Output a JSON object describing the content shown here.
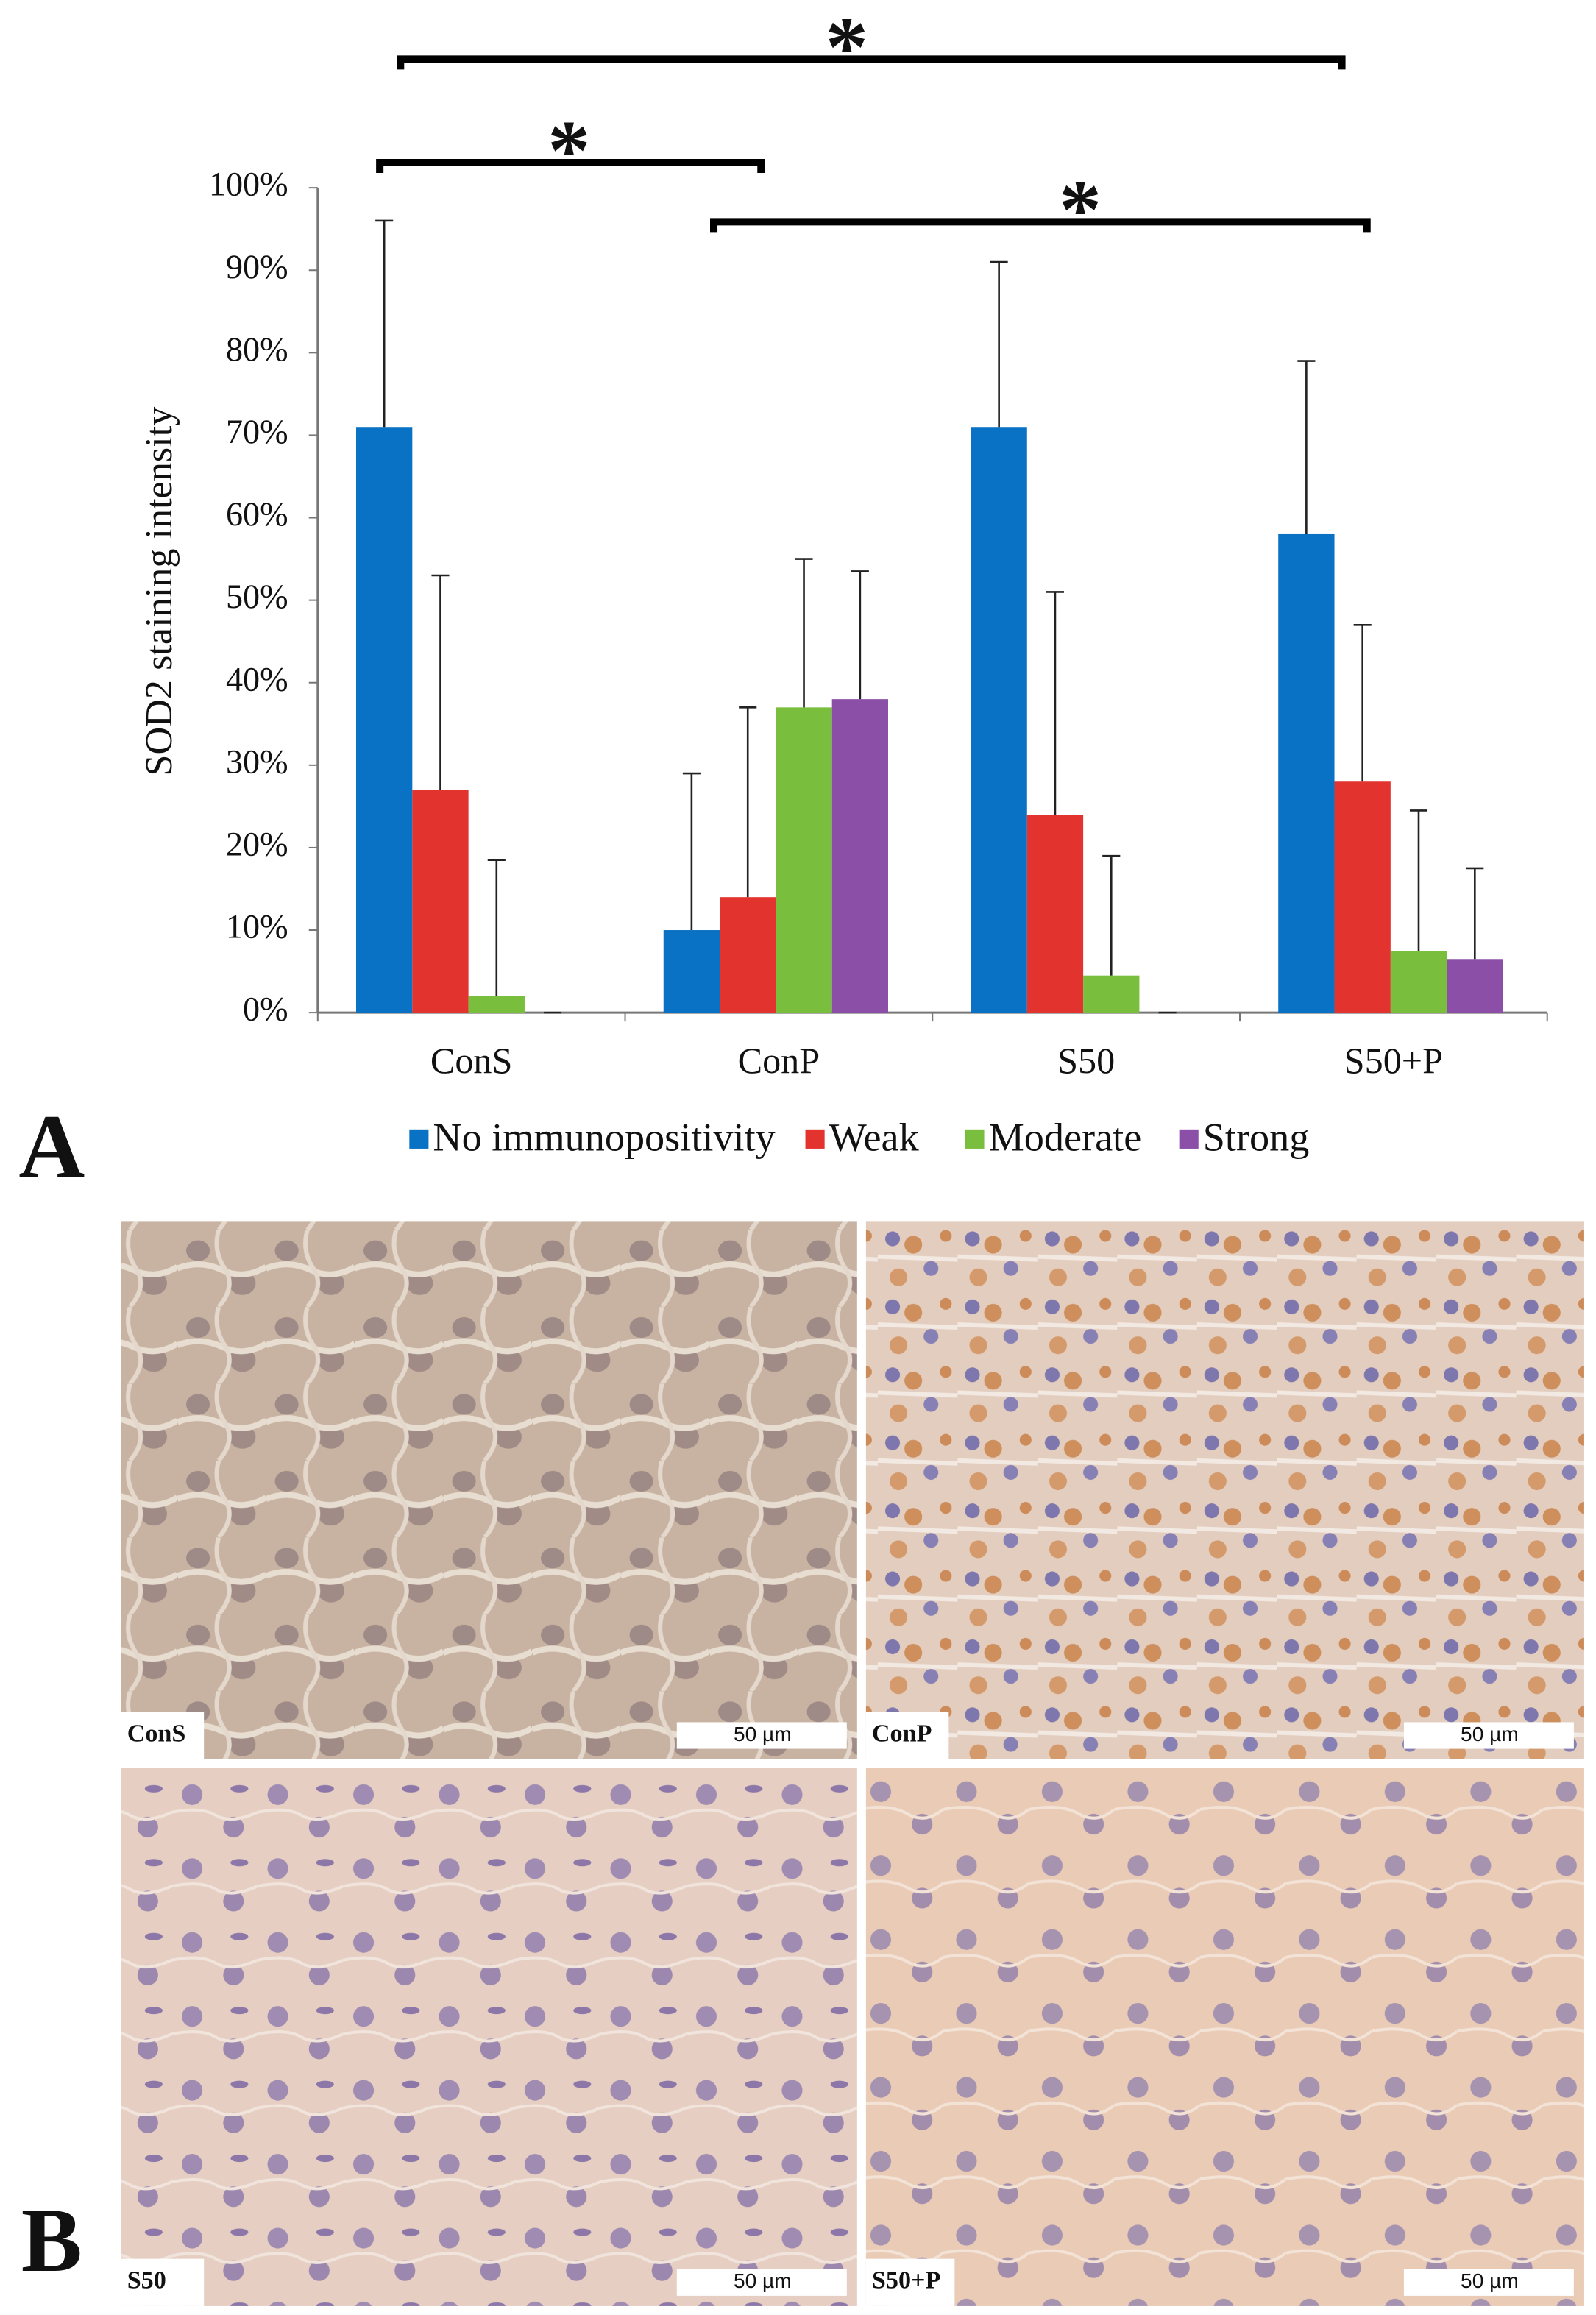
{
  "chart_data": {
    "type": "bar",
    "y_label": "SOD2 staining intensity",
    "categories": [
      "ConS",
      "ConP",
      "S50",
      "S50+P"
    ],
    "series": [
      {
        "name": "No immunopositivity",
        "color": "#0a72c4",
        "values": [
          71,
          10,
          71,
          58
        ],
        "errors": [
          25,
          19,
          20,
          21
        ]
      },
      {
        "name": "Weak",
        "color": "#e2332f",
        "values": [
          27,
          14,
          24,
          28
        ],
        "errors": [
          26,
          23,
          27,
          19
        ]
      },
      {
        "name": "Moderate",
        "color": "#79be3d",
        "values": [
          2,
          37,
          4.5,
          7.5
        ],
        "errors": [
          16.5,
          18,
          14.5,
          17
        ]
      },
      {
        "name": "Strong",
        "color": "#8b4fa8",
        "values": [
          0,
          38,
          0,
          6.5
        ],
        "errors": [
          0,
          15.5,
          0,
          11
        ]
      }
    ],
    "ylim": [
      0,
      100
    ],
    "yticks": [
      {
        "value": 0,
        "label": "0%"
      },
      {
        "value": 10,
        "label": "10%"
      },
      {
        "value": 20,
        "label": "20%"
      },
      {
        "value": 30,
        "label": "30%"
      },
      {
        "value": 40,
        "label": "40%"
      },
      {
        "value": 50,
        "label": "50%"
      },
      {
        "value": 60,
        "label": "60%"
      },
      {
        "value": 70,
        "label": "70%"
      },
      {
        "value": 80,
        "label": "80%"
      },
      {
        "value": 90,
        "label": "90%"
      },
      {
        "value": 100,
        "label": "100%"
      }
    ],
    "grid": false,
    "legend": "bottom",
    "annotations": [
      "*",
      "*",
      "*"
    ]
  },
  "panel_labels": [
    "A",
    "B"
  ],
  "micrographs": [
    {
      "label": "ConS",
      "scale_bar": "50 µm"
    },
    {
      "label": "ConP",
      "scale_bar": "50 µm"
    },
    {
      "label": "S50",
      "scale_bar": "50 µm"
    },
    {
      "label": "S50+P",
      "scale_bar": "50 µm"
    }
  ]
}
